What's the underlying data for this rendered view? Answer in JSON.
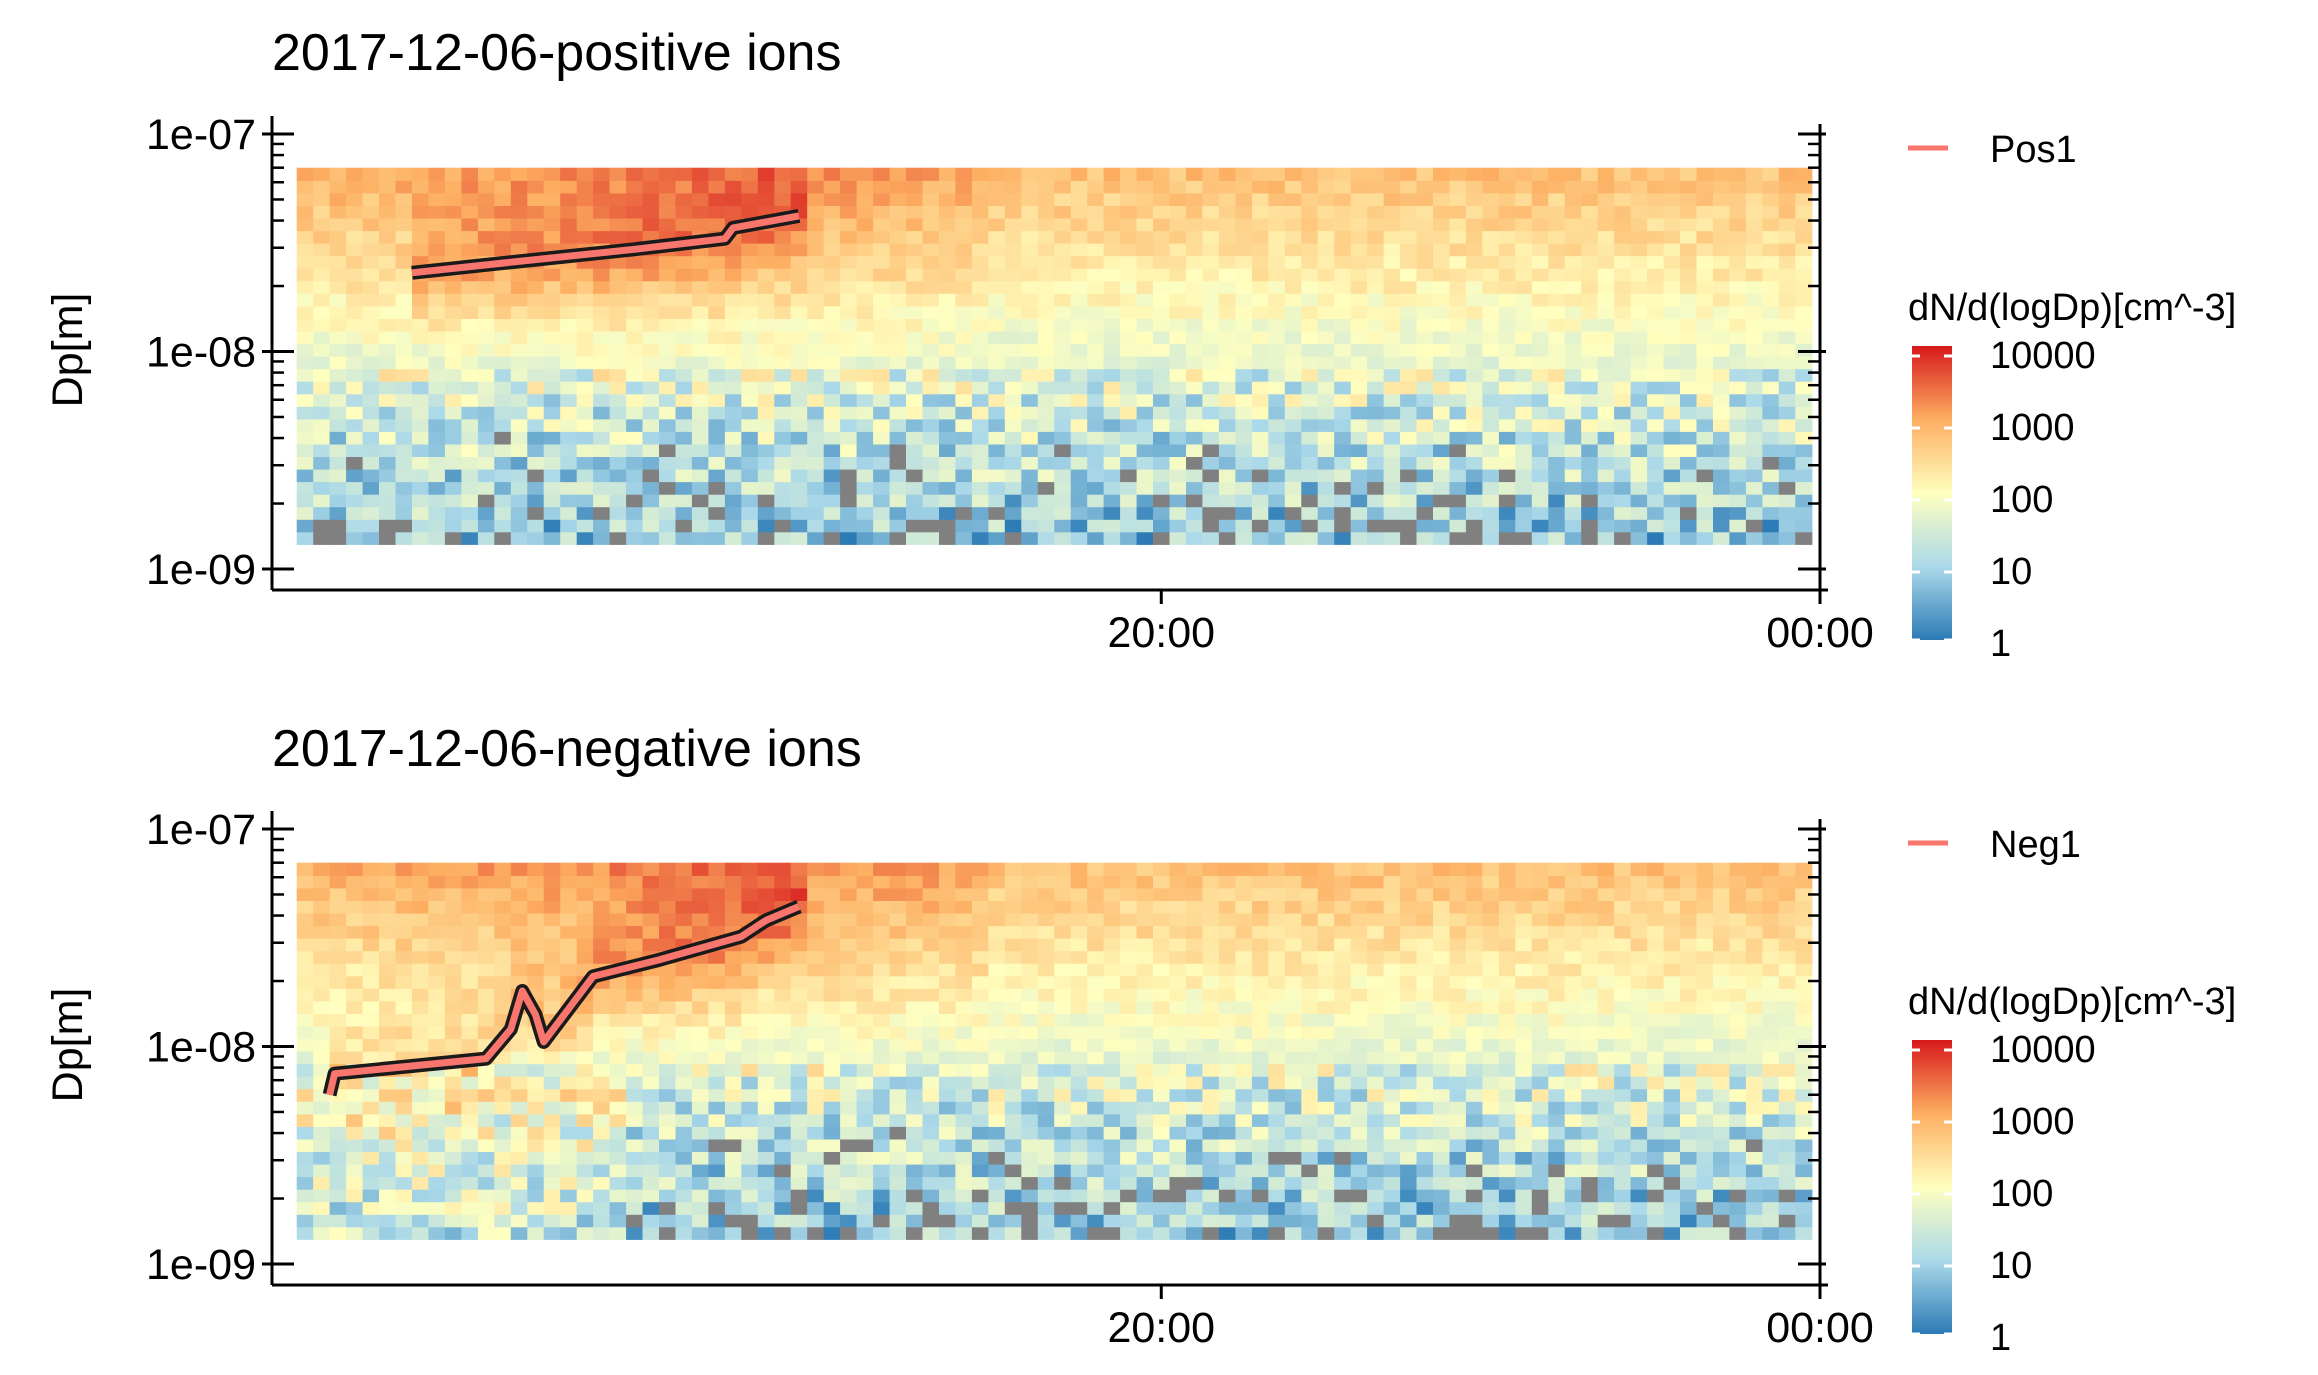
{
  "colors": {
    "trajectory": "#F8766D",
    "trajectory_outline": "#1a1a1a",
    "missing": "#808080",
    "colorscale": [
      "#2C7BB6",
      "#ABD9E9",
      "#FFFFBF",
      "#FDAE61",
      "#D7191C"
    ]
  },
  "chart_data": [
    {
      "type": "heatmap",
      "title": "2017-12-06-positive ions",
      "ylabel": "Dp[m]",
      "xlabel": "",
      "y_scale": "log",
      "ylim": [
        1e-09,
        1e-07
      ],
      "y_ticks": [
        {
          "value": 1e-07,
          "label": "1e-07"
        },
        {
          "value": 1e-08,
          "label": "1e-08"
        },
        {
          "value": 1e-09,
          "label": "1e-09"
        }
      ],
      "xlim_hours": [
        14.6,
        24.0
      ],
      "x_ticks": [
        {
          "hour": 20,
          "label": "20:00"
        },
        {
          "hour": 24,
          "label": "00:00"
        }
      ],
      "data_range": {
        "x_hours": [
          14.75,
          23.95
        ],
        "dp": [
          1.3e-09,
          7e-08
        ]
      },
      "colorbar": {
        "title": "dN/d(logDp)[cm^-3]",
        "scale": "log",
        "range": [
          1,
          10000
        ],
        "labels": [
          "10000",
          "1000",
          "100",
          "10",
          "1"
        ]
      },
      "legend": {
        "placement": "top-right",
        "entries": [
          {
            "name": "Pos1"
          }
        ]
      },
      "series": [
        {
          "name": "Pos1",
          "type": "line",
          "points": [
            [
              15.45,
              2.3e-08
            ],
            [
              16.0,
              2.55e-08
            ],
            [
              16.8,
              2.95e-08
            ],
            [
              17.35,
              3.3e-08
            ],
            [
              17.4,
              3.7e-08
            ],
            [
              17.8,
              4.2e-08
            ]
          ]
        }
      ]
    },
    {
      "type": "heatmap",
      "title": "2017-12-06-negative ions",
      "ylabel": "Dp[m]",
      "xlabel": "",
      "y_scale": "log",
      "ylim": [
        1e-09,
        1e-07
      ],
      "y_ticks": [
        {
          "value": 1e-07,
          "label": "1e-07"
        },
        {
          "value": 1e-08,
          "label": "1e-08"
        },
        {
          "value": 1e-09,
          "label": "1e-09"
        }
      ],
      "xlim_hours": [
        14.6,
        24.0
      ],
      "x_ticks": [
        {
          "hour": 20,
          "label": "20:00"
        },
        {
          "hour": 24,
          "label": "00:00"
        }
      ],
      "data_range": {
        "x_hours": [
          14.75,
          23.95
        ],
        "dp": [
          1.3e-09,
          7e-08
        ]
      },
      "colorbar": {
        "title": "dN/d(logDp)[cm^-3]",
        "scale": "log",
        "range": [
          1,
          10000
        ],
        "labels": [
          "10000",
          "1000",
          "100",
          "10",
          "1"
        ]
      },
      "legend": {
        "placement": "top-right",
        "entries": [
          {
            "name": "Neg1"
          }
        ]
      },
      "series": [
        {
          "name": "Neg1",
          "type": "line",
          "points": [
            [
              14.95,
              6e-09
            ],
            [
              14.98,
              7.5e-09
            ],
            [
              15.9,
              8.8e-09
            ],
            [
              16.05,
              1.2e-08
            ],
            [
              16.12,
              1.8e-08
            ],
            [
              16.2,
              1.4e-08
            ],
            [
              16.25,
              1.05e-08
            ],
            [
              16.55,
              2.1e-08
            ],
            [
              16.95,
              2.5e-08
            ],
            [
              17.45,
              3.2e-08
            ],
            [
              17.6,
              3.8e-08
            ],
            [
              17.8,
              4.4e-08
            ]
          ]
        }
      ]
    }
  ]
}
